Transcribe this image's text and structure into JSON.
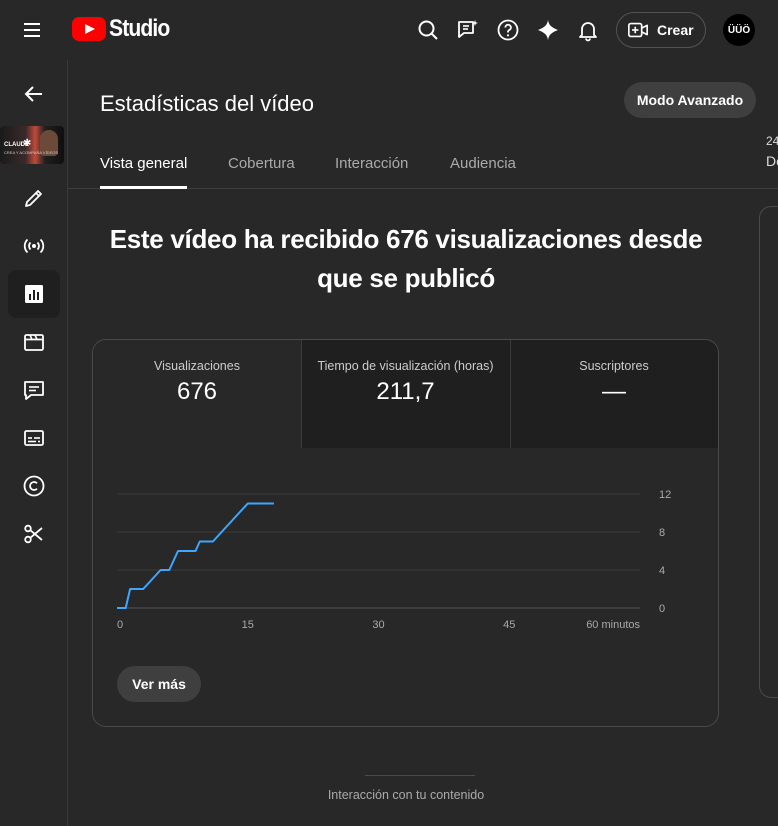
{
  "topbar": {
    "logo_text": "Studio",
    "create_label": "Crear",
    "avatar_text": "ÜÜÖ",
    "icons": [
      "menu-icon",
      "search-icon",
      "feedback-icon",
      "help-icon",
      "sparkle-icon",
      "bell-icon",
      "create-video-icon"
    ]
  },
  "sidebar": {
    "thumbnail_title": "CLAUDE",
    "thumbnail_subtitle": "CREA Y ACOMPAÑA VÍDEOS",
    "icons": [
      "back-arrow-icon",
      "edit-pencil-icon",
      "live-broadcast-icon",
      "analytics-icon",
      "video-clapper-icon",
      "comments-icon",
      "subtitles-icon",
      "copyright-icon",
      "scissors-icon"
    ],
    "active": "analytics-icon"
  },
  "header": {
    "title": "Estadísticas del vídeo",
    "advanced_mode": "Modo Avanzado"
  },
  "tabs": [
    {
      "label": "Vista general",
      "active": true
    },
    {
      "label": "Cobertura",
      "active": false
    },
    {
      "label": "Interacción",
      "active": false
    },
    {
      "label": "Audiencia",
      "active": false
    }
  ],
  "right_peek": {
    "top": "24",
    "bottom": "De"
  },
  "headline": "Este vídeo ha recibido 676 visualizaciones desde que se publicó",
  "metrics": [
    {
      "label": "Visualizaciones",
      "value": "676",
      "selected": true
    },
    {
      "label": "Tiempo de visualización (horas)",
      "value": "211,7",
      "selected": false
    },
    {
      "label": "Suscriptores",
      "value": "—",
      "selected": false
    }
  ],
  "chart_data": {
    "type": "line",
    "x_ticks": [
      "0",
      "15",
      "30",
      "45",
      "60 minutos"
    ],
    "y_ticks": [
      "0",
      "4",
      "8",
      "12"
    ],
    "xlim": [
      0,
      60
    ],
    "ylim": [
      0,
      12
    ],
    "color": "#3ea6ff",
    "x": [
      0,
      1,
      1.5,
      2.5,
      3,
      4,
      5,
      5.5,
      6,
      7,
      8,
      9,
      9.5,
      10,
      11,
      12,
      13,
      14,
      15,
      16,
      17,
      18
    ],
    "y": [
      0,
      0,
      2,
      2,
      2,
      3,
      4,
      4,
      4,
      6,
      6,
      6,
      7,
      7,
      7,
      8,
      9,
      10,
      11,
      11,
      11,
      11
    ]
  },
  "more_button": "Ver más",
  "footer_section": "Interacción con tu contenido"
}
